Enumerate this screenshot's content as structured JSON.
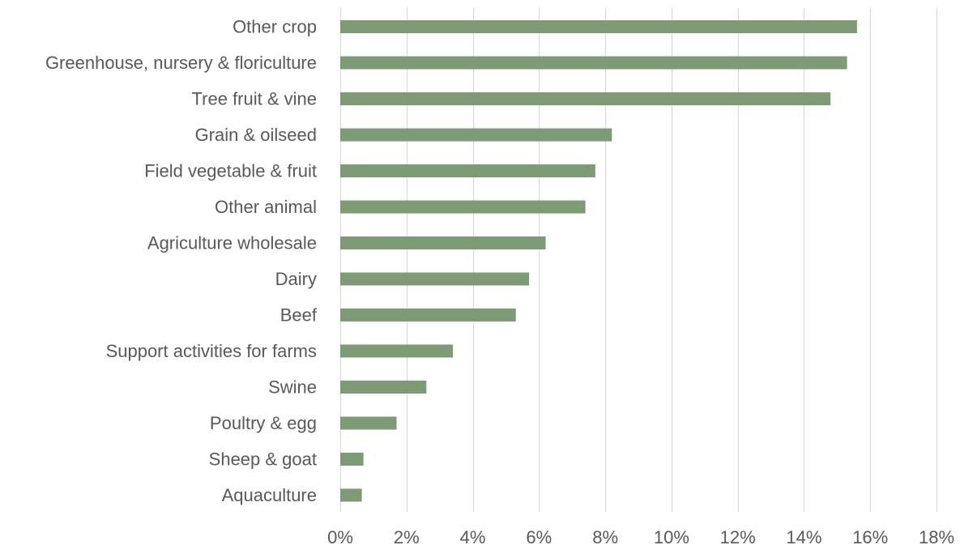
{
  "chart_data": {
    "type": "bar",
    "orientation": "horizontal",
    "title": "",
    "xlabel": "",
    "ylabel": "",
    "categories": [
      "Other crop",
      "Greenhouse, nursery & floriculture",
      "Tree fruit & vine",
      "Grain & oilseed",
      "Field vegetable & fruit",
      "Other animal",
      "Agriculture wholesale",
      "Dairy",
      "Beef",
      "Support activities for farms",
      "Swine",
      "Poultry & egg",
      "Sheep & goat",
      "Aquaculture"
    ],
    "values": [
      15.6,
      15.3,
      14.8,
      8.2,
      7.7,
      7.4,
      6.2,
      5.7,
      5.3,
      3.4,
      2.6,
      1.7,
      0.7,
      0.65
    ],
    "value_unit": "%",
    "xlim": [
      0,
      18
    ],
    "x_ticks": [
      0,
      2,
      4,
      6,
      8,
      10,
      12,
      14,
      16,
      18
    ],
    "x_tick_labels": [
      "0%",
      "2%",
      "4%",
      "6%",
      "8%",
      "10%",
      "12%",
      "14%",
      "16%",
      "18%"
    ],
    "grid": "vertical",
    "legend": "none",
    "colors": {
      "bar": "#7d9b74",
      "grid": "#d9d9d9",
      "text": "#595959"
    }
  }
}
